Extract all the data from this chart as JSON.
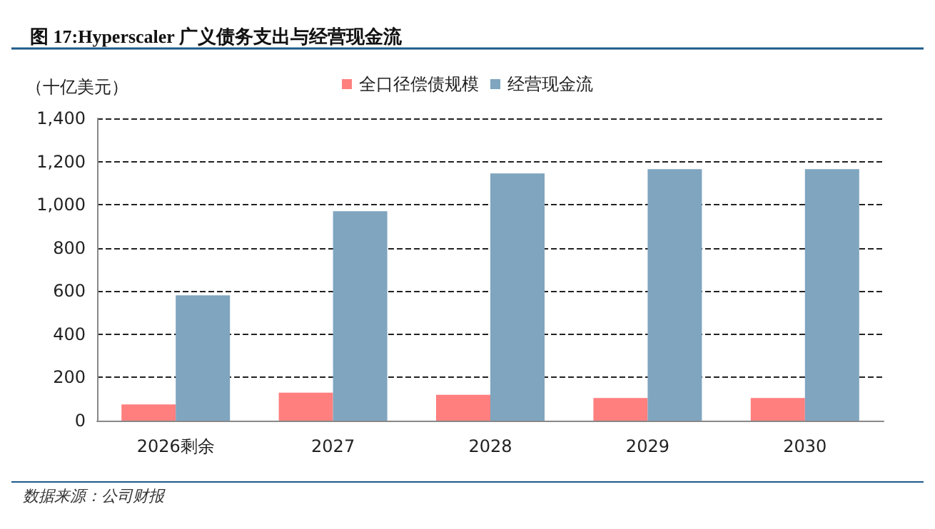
{
  "chart_data": {
    "type": "bar",
    "title": "图 17:Hyperscaler 广义债务支出与经营现金流",
    "ylabel": "（十亿美元）",
    "categories": [
      "2026剩余",
      "2027",
      "2028",
      "2029",
      "2030"
    ],
    "series": [
      {
        "name": "全口径偿债规模",
        "color": "#ff7f7f",
        "values": [
          75,
          130,
          120,
          105,
          105
        ]
      },
      {
        "name": "经营现金流",
        "color": "#7fa5bf",
        "values": [
          580,
          970,
          1145,
          1165,
          1165
        ]
      }
    ],
    "ylim": [
      0,
      1400
    ],
    "yticks": [
      0,
      200,
      400,
      600,
      800,
      {
        "value": 1000,
        "label": "1,000"
      },
      {
        "value": 1200,
        "label": "1,200"
      },
      {
        "value": 1400,
        "label": "1,400"
      }
    ],
    "grid": "y",
    "legend": "top",
    "annotations": [
      "数据来源：公司财报"
    ]
  }
}
